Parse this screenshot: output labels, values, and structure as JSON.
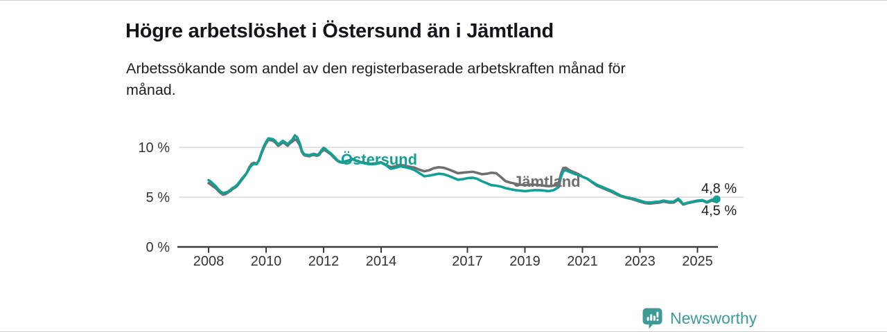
{
  "page": {
    "title": "Högre arbetslöshet i Östersund än i Jämtland",
    "subtitle_line1": "Arbetssökande som andel av den registerbaserade arbetskraften månad för",
    "subtitle_line2": "månad."
  },
  "footer": {
    "brand": "Newsworthy",
    "brand_color": "#3e9a94",
    "logo_icon": "bar-chart-speech-bubble-icon"
  },
  "chart_data": {
    "type": "line",
    "title": "Högre arbetslöshet i Östersund än i Jämtland",
    "subtitle": "Arbetssökande som andel av den registerbaserade arbetskraften månad för månad.",
    "unit": "%",
    "xlim": [
      2008.0,
      2025.67
    ],
    "ylim": [
      0,
      11.8
    ],
    "grid": true,
    "grid_values": [
      5,
      10
    ],
    "legend_position": "inline-labels",
    "colors": {
      "grid": "#d9d9d9",
      "axis": "#3a3a3a",
      "tick_text": "#333333",
      "value_text": "#1d1d1d"
    },
    "x_ticks": [
      {
        "year": 2008,
        "label": "2008"
      },
      {
        "year": 2010,
        "label": "2010"
      },
      {
        "year": 2012,
        "label": "2012"
      },
      {
        "year": 2014,
        "label": "2014"
      },
      {
        "year": 2017,
        "label": "2017"
      },
      {
        "year": 2019,
        "label": "2019"
      },
      {
        "year": 2021,
        "label": "2021"
      },
      {
        "year": 2023,
        "label": "2023"
      },
      {
        "year": 2025,
        "label": "2025"
      }
    ],
    "y_ticks": [
      {
        "value": 0,
        "label": "0 %"
      },
      {
        "value": 5,
        "label": "5 %"
      },
      {
        "value": 10,
        "label": "10 %"
      }
    ],
    "series": [
      {
        "name": "Jämtland",
        "color": "#6f6f6f",
        "end_label": "4,5 %",
        "end_dot": false,
        "points": [
          [
            2008,
            6.4
          ],
          [
            2008.08,
            6.25
          ],
          [
            2008.17,
            6.05
          ],
          [
            2008.25,
            5.9
          ],
          [
            2008.33,
            5.65
          ],
          [
            2008.42,
            5.4
          ],
          [
            2008.5,
            5.25
          ],
          [
            2008.58,
            5.3
          ],
          [
            2008.67,
            5.45
          ],
          [
            2008.75,
            5.6
          ],
          [
            2008.83,
            5.8
          ],
          [
            2008.92,
            5.95
          ],
          [
            2009,
            6.15
          ],
          [
            2009.08,
            6.45
          ],
          [
            2009.17,
            6.8
          ],
          [
            2009.25,
            7.1
          ],
          [
            2009.33,
            7.45
          ],
          [
            2009.42,
            8.0
          ],
          [
            2009.5,
            8.35
          ],
          [
            2009.58,
            8.45
          ],
          [
            2009.67,
            8.35
          ],
          [
            2009.75,
            8.65
          ],
          [
            2009.83,
            9.3
          ],
          [
            2009.92,
            9.95
          ],
          [
            2010,
            10.4
          ],
          [
            2010.08,
            10.75
          ],
          [
            2010.17,
            10.7
          ],
          [
            2010.25,
            10.65
          ],
          [
            2010.33,
            10.45
          ],
          [
            2010.42,
            10.15
          ],
          [
            2010.5,
            10.3
          ],
          [
            2010.58,
            10.5
          ],
          [
            2010.67,
            10.35
          ],
          [
            2010.75,
            10.15
          ],
          [
            2010.83,
            10.4
          ],
          [
            2010.92,
            10.6
          ],
          [
            2011,
            10.8
          ],
          [
            2011.08,
            10.65
          ],
          [
            2011.17,
            10.2
          ],
          [
            2011.25,
            9.5
          ],
          [
            2011.33,
            9.2
          ],
          [
            2011.42,
            9.15
          ],
          [
            2011.5,
            9.1
          ],
          [
            2011.58,
            9.2
          ],
          [
            2011.67,
            9.25
          ],
          [
            2011.75,
            9.15
          ],
          [
            2011.83,
            9.2
          ],
          [
            2011.92,
            9.55
          ],
          [
            2012,
            9.75
          ],
          [
            2012.08,
            9.65
          ],
          [
            2012.17,
            9.45
          ],
          [
            2012.25,
            9.3
          ],
          [
            2012.33,
            9.05
          ],
          [
            2012.42,
            8.8
          ],
          [
            2012.5,
            8.6
          ],
          [
            2012.58,
            8.5
          ],
          [
            2012.67,
            8.45
          ],
          [
            2012.75,
            8.55
          ],
          [
            2012.83,
            8.6
          ],
          [
            2012.92,
            8.7
          ],
          [
            2013,
            8.8
          ],
          [
            2013.17,
            8.6
          ],
          [
            2013.33,
            8.5
          ],
          [
            2013.5,
            8.4
          ],
          [
            2013.67,
            8.35
          ],
          [
            2013.83,
            8.4
          ],
          [
            2014,
            8.5
          ],
          [
            2014.17,
            8.25
          ],
          [
            2014.33,
            8.0
          ],
          [
            2014.5,
            8.1
          ],
          [
            2014.67,
            8.25
          ],
          [
            2014.83,
            8.15
          ],
          [
            2015,
            8.05
          ],
          [
            2015.17,
            7.95
          ],
          [
            2015.33,
            7.75
          ],
          [
            2015.5,
            7.6
          ],
          [
            2015.67,
            7.7
          ],
          [
            2015.83,
            7.9
          ],
          [
            2016,
            8.0
          ],
          [
            2016.17,
            7.95
          ],
          [
            2016.33,
            7.8
          ],
          [
            2016.5,
            7.6
          ],
          [
            2016.67,
            7.4
          ],
          [
            2016.83,
            7.45
          ],
          [
            2017,
            7.5
          ],
          [
            2017.17,
            7.55
          ],
          [
            2017.33,
            7.45
          ],
          [
            2017.5,
            7.3
          ],
          [
            2017.67,
            7.35
          ],
          [
            2017.83,
            7.45
          ],
          [
            2018,
            7.4
          ],
          [
            2018.17,
            7.0
          ],
          [
            2018.33,
            6.6
          ],
          [
            2018.5,
            6.45
          ],
          [
            2018.67,
            6.35
          ],
          [
            2018.83,
            6.25
          ],
          [
            2019,
            6.2
          ],
          [
            2019.17,
            6.25
          ],
          [
            2019.33,
            6.25
          ],
          [
            2019.5,
            6.2
          ],
          [
            2019.67,
            6.15
          ],
          [
            2019.83,
            6.1
          ],
          [
            2020,
            6.15
          ],
          [
            2020.17,
            6.4
          ],
          [
            2020.25,
            7.3
          ],
          [
            2020.33,
            7.9
          ],
          [
            2020.42,
            7.95
          ],
          [
            2020.5,
            7.8
          ],
          [
            2020.58,
            7.65
          ],
          [
            2020.67,
            7.55
          ],
          [
            2020.75,
            7.45
          ],
          [
            2020.83,
            7.35
          ],
          [
            2020.92,
            7.2
          ],
          [
            2021,
            7.05
          ],
          [
            2021.17,
            6.85
          ],
          [
            2021.33,
            6.5
          ],
          [
            2021.5,
            6.15
          ],
          [
            2021.67,
            5.95
          ],
          [
            2021.83,
            5.75
          ],
          [
            2022,
            5.55
          ],
          [
            2022.17,
            5.3
          ],
          [
            2022.33,
            5.1
          ],
          [
            2022.5,
            4.95
          ],
          [
            2022.67,
            4.85
          ],
          [
            2022.83,
            4.7
          ],
          [
            2023,
            4.55
          ],
          [
            2023.17,
            4.4
          ],
          [
            2023.33,
            4.35
          ],
          [
            2023.5,
            4.4
          ],
          [
            2023.67,
            4.45
          ],
          [
            2023.83,
            4.55
          ],
          [
            2024,
            4.45
          ],
          [
            2024.17,
            4.45
          ],
          [
            2024.33,
            4.75
          ],
          [
            2024.42,
            4.5
          ],
          [
            2024.5,
            4.25
          ],
          [
            2024.67,
            4.4
          ],
          [
            2024.83,
            4.5
          ],
          [
            2025,
            4.6
          ],
          [
            2025.17,
            4.65
          ],
          [
            2025.33,
            4.45
          ],
          [
            2025.5,
            4.65
          ],
          [
            2025.67,
            4.5
          ]
        ]
      },
      {
        "name": "Östersund",
        "color": "#12a095",
        "end_label": "4,8 %",
        "end_dot": true,
        "points": [
          [
            2008,
            6.7
          ],
          [
            2008.08,
            6.55
          ],
          [
            2008.17,
            6.3
          ],
          [
            2008.25,
            6.1
          ],
          [
            2008.33,
            5.8
          ],
          [
            2008.42,
            5.55
          ],
          [
            2008.5,
            5.4
          ],
          [
            2008.58,
            5.45
          ],
          [
            2008.67,
            5.55
          ],
          [
            2008.75,
            5.7
          ],
          [
            2008.83,
            5.9
          ],
          [
            2008.92,
            6.05
          ],
          [
            2009,
            6.25
          ],
          [
            2009.08,
            6.55
          ],
          [
            2009.17,
            6.9
          ],
          [
            2009.25,
            7.15
          ],
          [
            2009.33,
            7.45
          ],
          [
            2009.42,
            7.9
          ],
          [
            2009.5,
            8.2
          ],
          [
            2009.58,
            8.35
          ],
          [
            2009.67,
            8.3
          ],
          [
            2009.75,
            8.7
          ],
          [
            2009.83,
            9.4
          ],
          [
            2009.92,
            10.1
          ],
          [
            2010,
            10.55
          ],
          [
            2010.08,
            10.9
          ],
          [
            2010.17,
            10.85
          ],
          [
            2010.25,
            10.8
          ],
          [
            2010.33,
            10.6
          ],
          [
            2010.42,
            10.3
          ],
          [
            2010.5,
            10.45
          ],
          [
            2010.58,
            10.65
          ],
          [
            2010.67,
            10.5
          ],
          [
            2010.75,
            10.3
          ],
          [
            2010.83,
            10.55
          ],
          [
            2010.92,
            10.8
          ],
          [
            2011,
            11.2
          ],
          [
            2011.08,
            11.0
          ],
          [
            2011.17,
            10.4
          ],
          [
            2011.25,
            9.6
          ],
          [
            2011.33,
            9.3
          ],
          [
            2011.42,
            9.25
          ],
          [
            2011.5,
            9.2
          ],
          [
            2011.58,
            9.3
          ],
          [
            2011.67,
            9.35
          ],
          [
            2011.75,
            9.25
          ],
          [
            2011.83,
            9.3
          ],
          [
            2011.92,
            9.7
          ],
          [
            2012,
            9.95
          ],
          [
            2012.08,
            9.8
          ],
          [
            2012.17,
            9.55
          ],
          [
            2012.25,
            9.4
          ],
          [
            2012.33,
            9.15
          ],
          [
            2012.42,
            8.9
          ],
          [
            2012.5,
            8.65
          ],
          [
            2012.58,
            8.55
          ],
          [
            2012.67,
            8.5
          ],
          [
            2012.75,
            8.6
          ],
          [
            2012.83,
            8.65
          ],
          [
            2012.92,
            8.75
          ],
          [
            2013,
            8.85
          ],
          [
            2013.17,
            8.6
          ],
          [
            2013.33,
            8.45
          ],
          [
            2013.5,
            8.35
          ],
          [
            2013.67,
            8.3
          ],
          [
            2013.83,
            8.35
          ],
          [
            2014,
            8.45
          ],
          [
            2014.17,
            8.2
          ],
          [
            2014.33,
            7.85
          ],
          [
            2014.5,
            7.95
          ],
          [
            2014.67,
            8.1
          ],
          [
            2014.83,
            8.0
          ],
          [
            2015,
            7.9
          ],
          [
            2015.17,
            7.7
          ],
          [
            2015.33,
            7.4
          ],
          [
            2015.5,
            7.1
          ],
          [
            2015.67,
            7.15
          ],
          [
            2015.83,
            7.25
          ],
          [
            2016,
            7.35
          ],
          [
            2016.17,
            7.3
          ],
          [
            2016.33,
            7.15
          ],
          [
            2016.5,
            6.95
          ],
          [
            2016.67,
            6.75
          ],
          [
            2016.83,
            6.8
          ],
          [
            2017,
            6.9
          ],
          [
            2017.17,
            6.95
          ],
          [
            2017.33,
            6.85
          ],
          [
            2017.5,
            6.6
          ],
          [
            2017.67,
            6.4
          ],
          [
            2017.83,
            6.2
          ],
          [
            2018,
            6.15
          ],
          [
            2018.17,
            6.05
          ],
          [
            2018.33,
            5.9
          ],
          [
            2018.5,
            5.8
          ],
          [
            2018.67,
            5.7
          ],
          [
            2018.83,
            5.65
          ],
          [
            2019,
            5.6
          ],
          [
            2019.17,
            5.65
          ],
          [
            2019.33,
            5.7
          ],
          [
            2019.5,
            5.7
          ],
          [
            2019.67,
            5.65
          ],
          [
            2019.83,
            5.6
          ],
          [
            2020,
            5.7
          ],
          [
            2020.17,
            6.0
          ],
          [
            2020.25,
            7.0
          ],
          [
            2020.33,
            7.6
          ],
          [
            2020.42,
            7.7
          ],
          [
            2020.5,
            7.6
          ],
          [
            2020.58,
            7.5
          ],
          [
            2020.67,
            7.4
          ],
          [
            2020.75,
            7.3
          ],
          [
            2020.83,
            7.25
          ],
          [
            2020.92,
            7.15
          ],
          [
            2021,
            7.05
          ],
          [
            2021.17,
            6.85
          ],
          [
            2021.33,
            6.55
          ],
          [
            2021.5,
            6.25
          ],
          [
            2021.67,
            6.05
          ],
          [
            2021.83,
            5.85
          ],
          [
            2022,
            5.65
          ],
          [
            2022.17,
            5.4
          ],
          [
            2022.33,
            5.15
          ],
          [
            2022.5,
            5.0
          ],
          [
            2022.67,
            4.9
          ],
          [
            2022.83,
            4.8
          ],
          [
            2023,
            4.65
          ],
          [
            2023.17,
            4.5
          ],
          [
            2023.33,
            4.45
          ],
          [
            2023.5,
            4.5
          ],
          [
            2023.67,
            4.55
          ],
          [
            2023.83,
            4.65
          ],
          [
            2024,
            4.55
          ],
          [
            2024.17,
            4.55
          ],
          [
            2024.33,
            4.85
          ],
          [
            2024.42,
            4.6
          ],
          [
            2024.5,
            4.3
          ],
          [
            2024.67,
            4.45
          ],
          [
            2024.83,
            4.55
          ],
          [
            2025,
            4.65
          ],
          [
            2025.17,
            4.7
          ],
          [
            2025.33,
            4.5
          ],
          [
            2025.5,
            4.75
          ],
          [
            2025.67,
            4.8
          ]
        ]
      }
    ]
  }
}
